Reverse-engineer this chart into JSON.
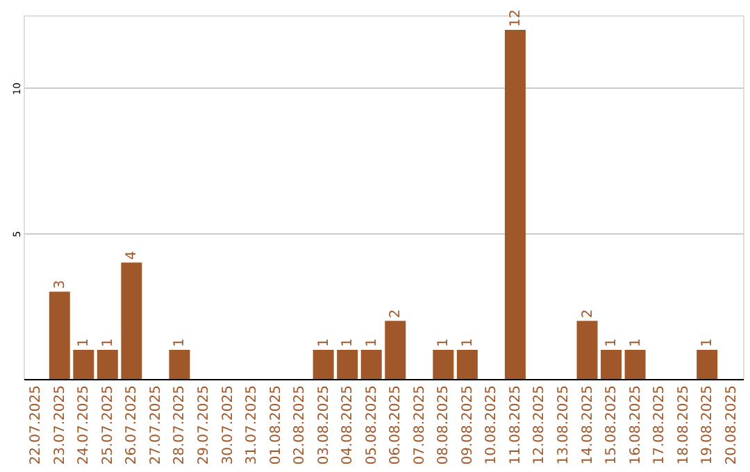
{
  "chart_data": {
    "type": "bar",
    "categories": [
      "22.07.2025",
      "23.07.2025",
      "24.07.2025",
      "25.07.2025",
      "26.07.2025",
      "27.07.2025",
      "28.07.2025",
      "29.07.2025",
      "30.07.2025",
      "31.07.2025",
      "01.08.2025",
      "02.08.2025",
      "03.08.2025",
      "04.08.2025",
      "05.08.2025",
      "06.08.2025",
      "07.08.2025",
      "08.08.2025",
      "09.08.2025",
      "10.08.2025",
      "11.08.2025",
      "12.08.2025",
      "13.08.2025",
      "14.08.2025",
      "15.08.2025",
      "16.08.2025",
      "17.08.2025",
      "18.08.2025",
      "19.08.2025",
      "20.08.2025"
    ],
    "values": [
      0,
      3,
      1,
      1,
      4,
      0,
      1,
      0,
      0,
      0,
      0,
      0,
      1,
      1,
      1,
      2,
      0,
      1,
      1,
      0,
      12,
      0,
      0,
      2,
      1,
      1,
      0,
      0,
      1,
      0
    ],
    "value_labels": [
      null,
      "3",
      "1",
      "1",
      "4",
      null,
      "1",
      null,
      null,
      null,
      null,
      null,
      "1",
      "1",
      "1",
      "2",
      null,
      "1",
      "1",
      null,
      "12",
      null,
      null,
      "2",
      "1",
      "1",
      null,
      null,
      "1",
      null
    ],
    "color": "#a0582a",
    "ylim": [
      0,
      12.5
    ],
    "yticks": [
      5,
      10
    ],
    "grid": "y"
  }
}
